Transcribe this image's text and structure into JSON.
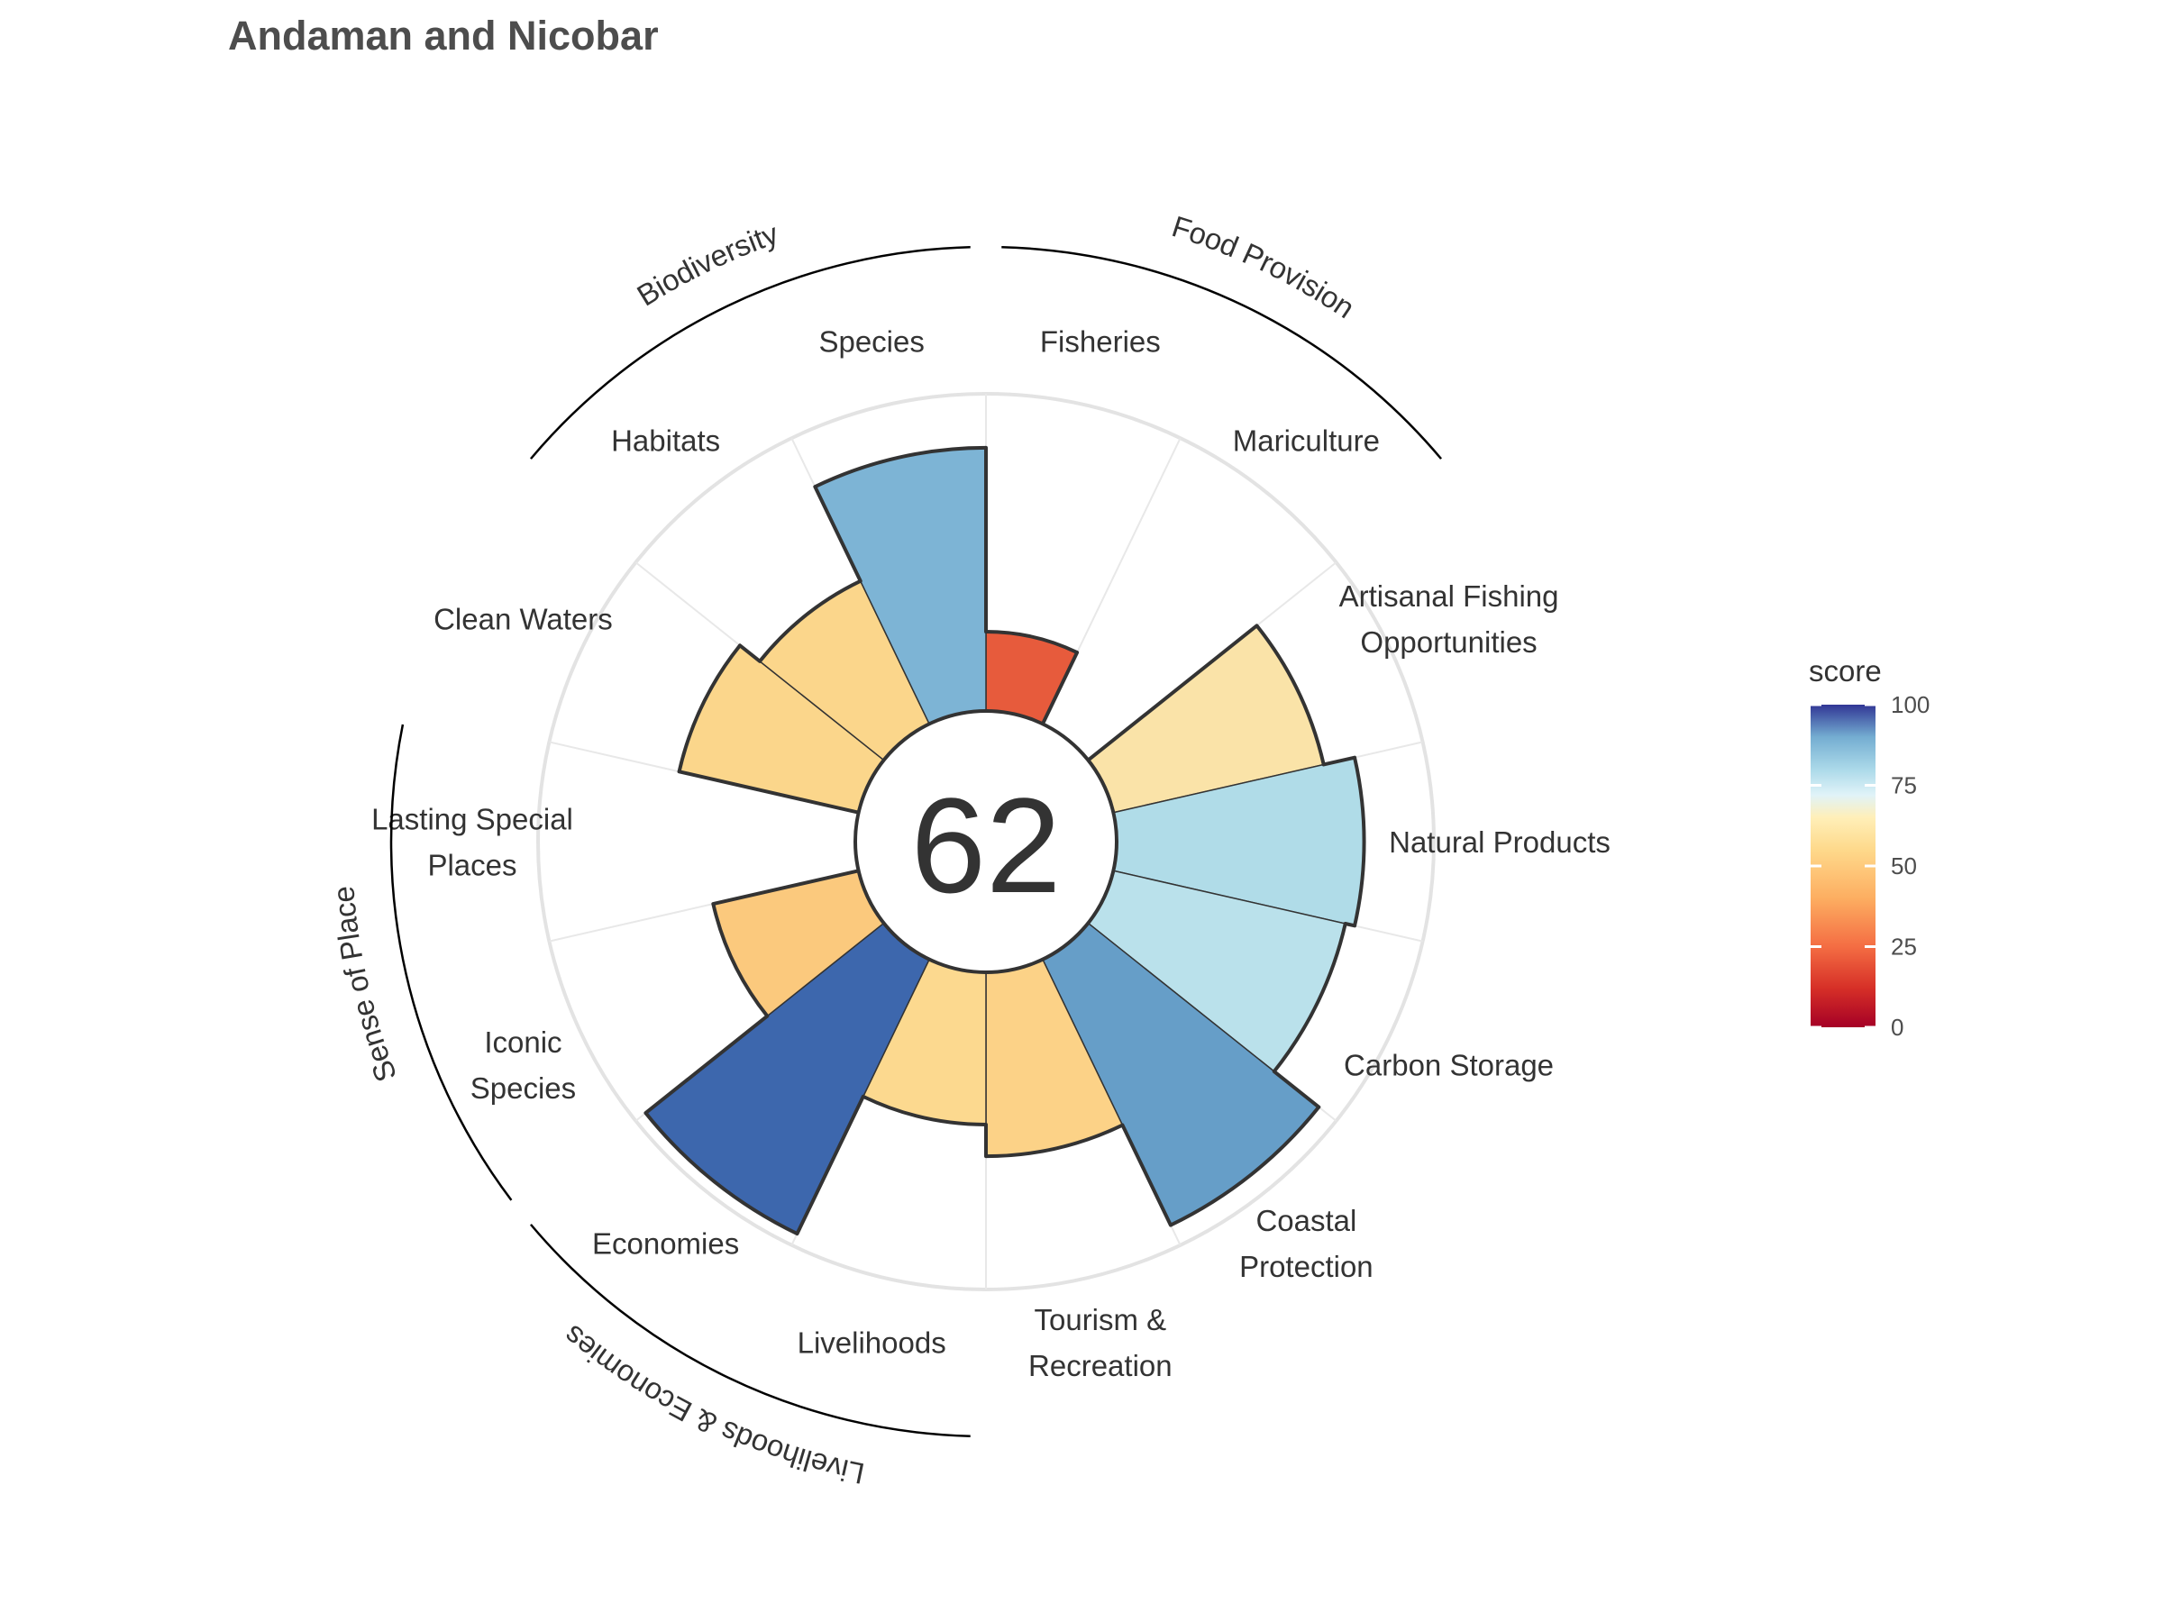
{
  "chart_data": {
    "type": "bar",
    "subtype": "polar-flower",
    "title": "Andaman and Nicobar",
    "center_score": "62",
    "ylim": [
      0,
      100
    ],
    "max_score": 100,
    "color_scale": {
      "name": "score",
      "domain": [
        0,
        100
      ],
      "ticks": [
        "0",
        "25",
        "50",
        "75",
        "100"
      ],
      "stops": [
        {
          "value": 0,
          "color": "#a50026"
        },
        {
          "value": 12,
          "color": "#d62f27"
        },
        {
          "value": 25,
          "color": "#f46d43"
        },
        {
          "value": 40,
          "color": "#fdae61"
        },
        {
          "value": 55,
          "color": "#fed98b"
        },
        {
          "value": 65,
          "color": "#ffefb8"
        },
        {
          "value": 72,
          "color": "#e0f3f8"
        },
        {
          "value": 80,
          "color": "#abd9e9"
        },
        {
          "value": 90,
          "color": "#74add1"
        },
        {
          "value": 100,
          "color": "#313695"
        }
      ]
    },
    "goals": [
      {
        "label": [
          "Fisheries"
        ],
        "score": 25,
        "color": "#e75b3c",
        "weight": 1
      },
      {
        "label": [
          "Mariculture"
        ],
        "score": 0,
        "color": "#ffffff",
        "weight": 1
      },
      {
        "label": [
          "Artisanal Fishing",
          "Opportunities"
        ],
        "score": 68,
        "color": "#fae3a8",
        "weight": 1
      },
      {
        "label": [
          "Natural Products"
        ],
        "score": 78,
        "color": "#b0dce8",
        "weight": 1
      },
      {
        "label": [
          "Carbon Storage"
        ],
        "score": 75,
        "color": "#bae1eb",
        "weight": 1
      },
      {
        "label": [
          "Coastal",
          "Protection"
        ],
        "score": 93,
        "color": "#669ec8",
        "weight": 1
      },
      {
        "label": [
          "Tourism &",
          "Recreation"
        ],
        "score": 58,
        "color": "#fcd287",
        "weight": 1
      },
      {
        "label": [
          "Livelihoods"
        ],
        "score": 48,
        "color": "#fcd98f",
        "weight": 1
      },
      {
        "label": [
          "Economies"
        ],
        "score": 96,
        "color": "#3d67ad",
        "weight": 1
      },
      {
        "label": [
          "Iconic",
          "Species"
        ],
        "score": 47,
        "color": "#fbc97d",
        "weight": 1
      },
      {
        "label": [
          "Lasting Special",
          "Places"
        ],
        "score": 0,
        "color": "#ffffff",
        "weight": 1
      },
      {
        "label": [
          "Clean Waters"
        ],
        "score": 58,
        "color": "#fbd68b",
        "weight": 1
      },
      {
        "label": [
          "Habitats"
        ],
        "score": 50,
        "color": "#fbd68b",
        "weight": 1
      },
      {
        "label": [
          "Species"
        ],
        "score": 83,
        "color": "#7db4d5",
        "weight": 1
      }
    ],
    "groups": [
      {
        "name": "Food Provision",
        "members": [
          0,
          1
        ]
      },
      {
        "name": "Biodiversity",
        "members": [
          12,
          13
        ]
      },
      {
        "name": "Sense of Place",
        "members": [
          9,
          10
        ]
      },
      {
        "name": "Livelihoods & Economies",
        "members": [
          7,
          8
        ]
      }
    ],
    "grid": true,
    "legend_position": "right"
  }
}
